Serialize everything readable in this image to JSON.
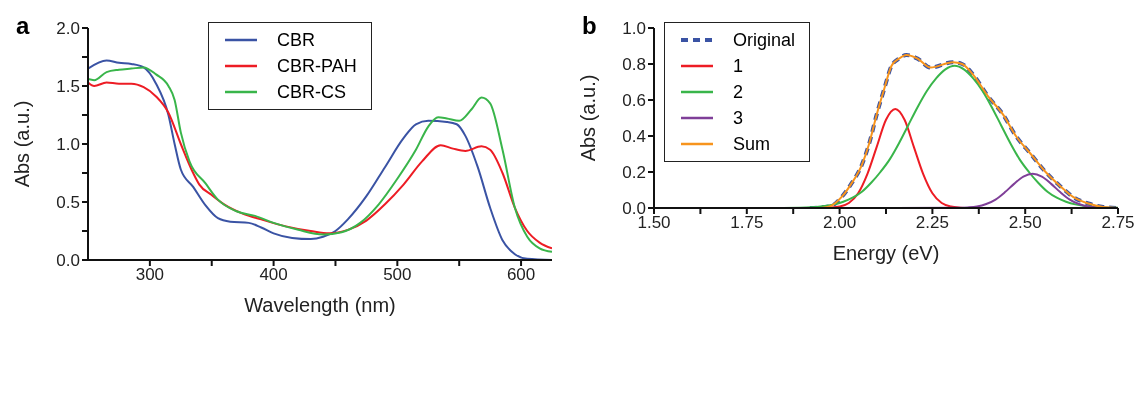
{
  "chart_data": [
    {
      "type": "line",
      "title": "a",
      "xlabel": "Wavelength (nm)",
      "ylabel": "Abs (a.u.)",
      "xlim": [
        250,
        625
      ],
      "xticks": [
        300,
        {
          "value": 350,
          "label": null
        },
        400,
        {
          "value": 450,
          "label": null
        },
        500,
        {
          "value": 550,
          "label": null
        },
        600
      ],
      "ylim": [
        0,
        2
      ],
      "yticks": [
        {
          "value": 0,
          "label": "0.0"
        },
        {
          "value": 0.25,
          "label": null
        },
        0.5,
        {
          "value": 0.75,
          "label": null
        },
        {
          "value": 1,
          "label": "1.0"
        },
        {
          "value": 1.25,
          "label": null
        },
        1.5,
        {
          "value": 1.75,
          "label": null
        },
        {
          "value": 2,
          "label": "2.0"
        }
      ],
      "grid": false,
      "legend": "top",
      "line_style": "solid",
      "marker": "none",
      "series": [
        {
          "name": "CBR",
          "color": "#3a53a4",
          "x": [
            250,
            265,
            275,
            285,
            295,
            305,
            315,
            320,
            325,
            335,
            345,
            355,
            365,
            380,
            390,
            400,
            415,
            430,
            440,
            450,
            460,
            475,
            490,
            505,
            515,
            525,
            540,
            548,
            555,
            565,
            575,
            585,
            595,
            605,
            625
          ],
          "values": [
            1.65,
            1.72,
            1.7,
            1.69,
            1.66,
            1.52,
            1.25,
            1.0,
            0.78,
            0.63,
            0.47,
            0.36,
            0.33,
            0.32,
            0.28,
            0.23,
            0.19,
            0.18,
            0.2,
            0.25,
            0.35,
            0.55,
            0.8,
            1.05,
            1.17,
            1.2,
            1.19,
            1.17,
            1.07,
            0.8,
            0.45,
            0.17,
            0.05,
            0.01,
            0.0
          ]
        },
        {
          "name": "CBR-PAH",
          "color": "#ed1c24",
          "x": [
            250,
            255,
            265,
            275,
            285,
            295,
            305,
            315,
            325,
            335,
            340,
            350,
            360,
            375,
            390,
            410,
            430,
            445,
            460,
            475,
            490,
            505,
            520,
            535,
            545,
            555,
            568,
            575,
            585,
            595,
            605,
            615,
            625
          ],
          "values": [
            1.53,
            1.5,
            1.53,
            1.52,
            1.52,
            1.49,
            1.41,
            1.27,
            1.0,
            0.75,
            0.65,
            0.56,
            0.48,
            0.4,
            0.35,
            0.29,
            0.25,
            0.23,
            0.26,
            0.34,
            0.48,
            0.65,
            0.85,
            0.99,
            0.96,
            0.94,
            0.98,
            0.95,
            0.75,
            0.45,
            0.25,
            0.15,
            0.1
          ]
        },
        {
          "name": "CBR-CS",
          "color": "#39b54a",
          "x": [
            250,
            255,
            265,
            275,
            285,
            295,
            305,
            315,
            320,
            325,
            332,
            345,
            355,
            370,
            385,
            400,
            420,
            440,
            455,
            470,
            485,
            500,
            515,
            525,
            533,
            540,
            550,
            560,
            568,
            575,
            585,
            595,
            605,
            615,
            625
          ],
          "values": [
            1.56,
            1.55,
            1.62,
            1.64,
            1.65,
            1.66,
            1.6,
            1.5,
            1.38,
            1.1,
            0.85,
            0.66,
            0.52,
            0.42,
            0.38,
            0.32,
            0.26,
            0.22,
            0.24,
            0.32,
            0.48,
            0.7,
            0.95,
            1.15,
            1.23,
            1.22,
            1.2,
            1.3,
            1.4,
            1.35,
            0.95,
            0.45,
            0.2,
            0.1,
            0.07
          ]
        }
      ]
    },
    {
      "type": "line",
      "title": "b",
      "xlabel": "Energy (eV)",
      "ylabel": "Abs (a.u.)",
      "xlim": [
        1.5,
        2.75
      ],
      "xticks": [
        {
          "value": 1.5,
          "label": "1.50"
        },
        {
          "value": 1.625,
          "label": null
        },
        1.75,
        {
          "value": 1.875,
          "label": null
        },
        {
          "value": 2,
          "label": "2.00"
        },
        {
          "value": 2.125,
          "label": null
        },
        2.25,
        {
          "value": 2.375,
          "label": null
        },
        {
          "value": 2.5,
          "label": "2.50"
        },
        {
          "value": 2.625,
          "label": null
        },
        2.75
      ],
      "ylim": [
        0,
        1
      ],
      "yticks": [
        {
          "value": 0,
          "label": "0.0"
        },
        0.2,
        0.4,
        0.6,
        0.8,
        {
          "value": 1,
          "label": "1.0"
        }
      ],
      "grid": false,
      "legend": "top left",
      "marker": "none",
      "series": [
        {
          "name": "Original",
          "color": "#3a53a4",
          "line_style": "dashed",
          "x": [
            1.92,
            1.975,
            2.005,
            2.03,
            2.06,
            2.08,
            2.1,
            2.12,
            2.14,
            2.16,
            2.18,
            2.21,
            2.245,
            2.305,
            2.33,
            2.36,
            2.4,
            2.44,
            2.475,
            2.515,
            2.555,
            2.595,
            2.63,
            2.67,
            2.71,
            2.75
          ],
          "values": [
            0,
            0.01,
            0.06,
            0.13,
            0.24,
            0.36,
            0.52,
            0.66,
            0.79,
            0.83,
            0.85,
            0.83,
            0.78,
            0.81,
            0.8,
            0.74,
            0.62,
            0.52,
            0.4,
            0.3,
            0.2,
            0.12,
            0.06,
            0.025,
            0.006,
            0
          ]
        },
        {
          "name": "1",
          "color": "#ed1c24",
          "line_style": "solid",
          "x": [
            1.95,
            1.975,
            2.0,
            2.025,
            2.05,
            2.075,
            2.1,
            2.125,
            2.15,
            2.175,
            2.2,
            2.225,
            2.25,
            2.275,
            2.3,
            2.325,
            2.35,
            2.6
          ],
          "values": [
            0,
            0.002,
            0.008,
            0.028,
            0.082,
            0.19,
            0.34,
            0.49,
            0.55,
            0.49,
            0.34,
            0.19,
            0.082,
            0.028,
            0.008,
            0.002,
            0,
            0
          ]
        },
        {
          "name": "2",
          "color": "#39b54a",
          "line_style": "solid",
          "x": [
            1.82,
            1.91,
            1.96,
            1.985,
            2.01,
            2.035,
            2.06,
            2.085,
            2.11,
            2.135,
            2.16,
            2.185,
            2.21,
            2.235,
            2.26,
            2.285,
            2.31,
            2.335,
            2.36,
            2.385,
            2.41,
            2.435,
            2.46,
            2.485,
            2.51,
            2.535,
            2.56,
            2.585,
            2.61,
            2.635,
            2.66,
            2.71,
            2.75
          ],
          "values": [
            0,
            0.003,
            0.011,
            0.02,
            0.035,
            0.057,
            0.09,
            0.14,
            0.2,
            0.27,
            0.36,
            0.46,
            0.56,
            0.65,
            0.72,
            0.77,
            0.79,
            0.77,
            0.72,
            0.65,
            0.56,
            0.46,
            0.36,
            0.27,
            0.2,
            0.14,
            0.09,
            0.057,
            0.035,
            0.02,
            0.011,
            0.003,
            0.001
          ]
        },
        {
          "name": "3",
          "color": "#7f3f98",
          "line_style": "solid",
          "x": [
            2.0,
            2.32,
            2.345,
            2.37,
            2.395,
            2.42,
            2.445,
            2.47,
            2.495,
            2.52,
            2.545,
            2.57,
            2.595,
            2.62,
            2.645,
            2.67,
            2.695,
            2.72,
            2.75
          ],
          "values": [
            0,
            0.001,
            0.003,
            0.008,
            0.022,
            0.047,
            0.087,
            0.134,
            0.174,
            0.19,
            0.174,
            0.134,
            0.087,
            0.047,
            0.022,
            0.008,
            0.003,
            0.001,
            0
          ]
        },
        {
          "name": "Sum",
          "color": "#f7941d",
          "line_style": "solid",
          "x": [
            1.95,
            1.975,
            2.005,
            2.03,
            2.06,
            2.08,
            2.1,
            2.12,
            2.14,
            2.16,
            2.18,
            2.21,
            2.245,
            2.305,
            2.33,
            2.36,
            2.4,
            2.44,
            2.475,
            2.515,
            2.555,
            2.595,
            2.63,
            2.67,
            2.71,
            2.75
          ],
          "values": [
            0,
            0.01,
            0.06,
            0.13,
            0.24,
            0.36,
            0.52,
            0.66,
            0.79,
            0.83,
            0.85,
            0.83,
            0.78,
            0.81,
            0.8,
            0.74,
            0.62,
            0.52,
            0.4,
            0.3,
            0.2,
            0.12,
            0.06,
            0.025,
            0.006,
            0
          ]
        }
      ]
    }
  ]
}
